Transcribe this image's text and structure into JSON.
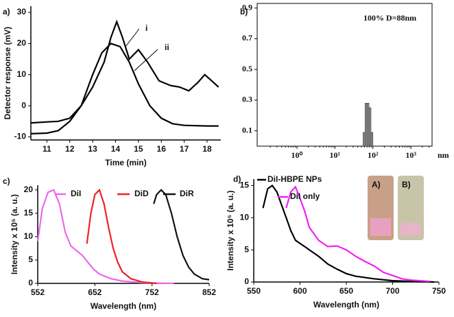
{
  "chart_data": [
    {
      "type": "line",
      "panel_label": "a)",
      "xlabel": "Time (min)",
      "ylabel": "Detector response (mV)",
      "xlim": [
        10.3,
        18.6
      ],
      "ylim": [
        -11,
        32
      ],
      "xticks": [
        11,
        12,
        13,
        14,
        15,
        16,
        17,
        18
      ],
      "yticks": [
        -10,
        0,
        10,
        20,
        30
      ],
      "series": [
        {
          "name": "i",
          "color": "#000000",
          "x": [
            10.3,
            11,
            11.5,
            12,
            12.5,
            13,
            13.5,
            13.8,
            14.05,
            14.3,
            14.6,
            15,
            15.4,
            15.9,
            16.4,
            16.8,
            17.2,
            17.6,
            17.9,
            18.2,
            18.5
          ],
          "values": [
            -9,
            -8.8,
            -8,
            -5,
            0,
            6,
            14,
            22,
            27,
            22,
            15,
            18,
            14,
            8,
            6.5,
            6,
            4.8,
            7.5,
            10,
            8,
            6
          ]
        },
        {
          "name": "ii",
          "color": "#000000",
          "x": [
            10.3,
            11,
            11.5,
            12,
            12.5,
            13,
            13.4,
            13.8,
            14.2,
            14.6,
            15,
            15.5,
            16,
            16.5,
            17,
            18,
            18.5
          ],
          "values": [
            -5.5,
            -5.2,
            -5,
            -4,
            0,
            10,
            17,
            20,
            19,
            14,
            7,
            0,
            -4,
            -5.8,
            -6.3,
            -6.5,
            -6.5
          ]
        }
      ]
    },
    {
      "type": "histogram",
      "panel_label": "b)",
      "xlabel": "nm",
      "annotation": "100% D=88nm",
      "xscale": "log",
      "xlim": [
        0.09,
        3600
      ],
      "ylim": [
        0,
        0.93
      ],
      "xticks": [
        {
          "value": 1,
          "label": "10⁰"
        },
        {
          "value": 10,
          "label": "10¹"
        },
        {
          "value": 100,
          "label": "10²"
        },
        {
          "value": 1000,
          "label": "10³"
        }
      ],
      "yticks": [
        0.1,
        0.3,
        0.5,
        0.7,
        0.9
      ],
      "bins": [
        55,
        62,
        70,
        79,
        89,
        100
      ],
      "values": [
        0.09,
        0.28,
        0.28,
        0.25,
        0.09
      ],
      "color": "#8c8c8c"
    },
    {
      "type": "line",
      "panel_label": "c)",
      "xlabel": "Wavelength (nm)",
      "ylabel": "Intensity x 10⁵ (a. u.)",
      "xlim": [
        552,
        852
      ],
      "ylim": [
        0,
        21
      ],
      "xticks": [
        552,
        652,
        752,
        852
      ],
      "yticks": [
        0,
        5,
        10,
        15,
        20
      ],
      "series": [
        {
          "name": "DiI",
          "color": "#ee66ee",
          "x": [
            552,
            560,
            570,
            580,
            590,
            600,
            610,
            620,
            630,
            640,
            650,
            660,
            680,
            700,
            740,
            790
          ],
          "values": [
            9,
            16,
            19.5,
            20,
            17,
            11,
            8,
            7,
            6,
            4.5,
            3,
            2,
            1,
            0.5,
            0.1,
            0
          ]
        },
        {
          "name": "DiD",
          "color": "#ee2222",
          "x": [
            638,
            645,
            652,
            660,
            668,
            676,
            684,
            692,
            700,
            715,
            735,
            760
          ],
          "values": [
            8.5,
            15,
            19,
            20,
            17,
            12,
            7.5,
            4.5,
            2.5,
            1,
            0.3,
            0
          ]
        },
        {
          "name": "DiR",
          "color": "#111111",
          "x": [
            755,
            760,
            768,
            776,
            786,
            796,
            806,
            816,
            826,
            840,
            852
          ],
          "values": [
            17,
            19,
            20,
            19,
            15,
            10,
            6,
            3.5,
            2,
            1,
            0.8
          ]
        }
      ]
    },
    {
      "type": "line",
      "panel_label": "d)",
      "xlabel": "Wavelength (nm)",
      "ylabel": "Intensity x 10⁵ (a. u.)",
      "xlim": [
        550,
        750
      ],
      "ylim": [
        0,
        16
      ],
      "xticks": [
        550,
        600,
        650,
        700,
        750
      ],
      "yticks": [
        0,
        5,
        10,
        15
      ],
      "insets": [
        "A)",
        "B)"
      ],
      "series": [
        {
          "name": "DiI-HBPE NPs",
          "color": "#000000",
          "x": [
            560,
            565,
            570,
            575,
            580,
            585,
            590,
            595,
            600,
            605,
            610,
            620,
            630,
            640,
            650,
            660,
            680,
            700,
            720,
            745
          ],
          "values": [
            11.5,
            14.5,
            15,
            14,
            12,
            10,
            8,
            6.5,
            6,
            5.5,
            5,
            4,
            2.8,
            2,
            1.3,
            0.9,
            0.5,
            0.2,
            0.1,
            0
          ]
        },
        {
          "name": "DiI only",
          "color": "#ee22ee",
          "x": [
            585,
            590,
            595,
            600,
            605,
            610,
            620,
            630,
            640,
            650,
            660,
            670,
            680,
            690,
            700,
            710,
            720,
            740
          ],
          "values": [
            11.5,
            14,
            14.8,
            13,
            11,
            8.5,
            6.5,
            5.5,
            5.6,
            5,
            4,
            3.2,
            2.5,
            1.5,
            1,
            0.5,
            0.3,
            0.1
          ]
        }
      ]
    }
  ]
}
